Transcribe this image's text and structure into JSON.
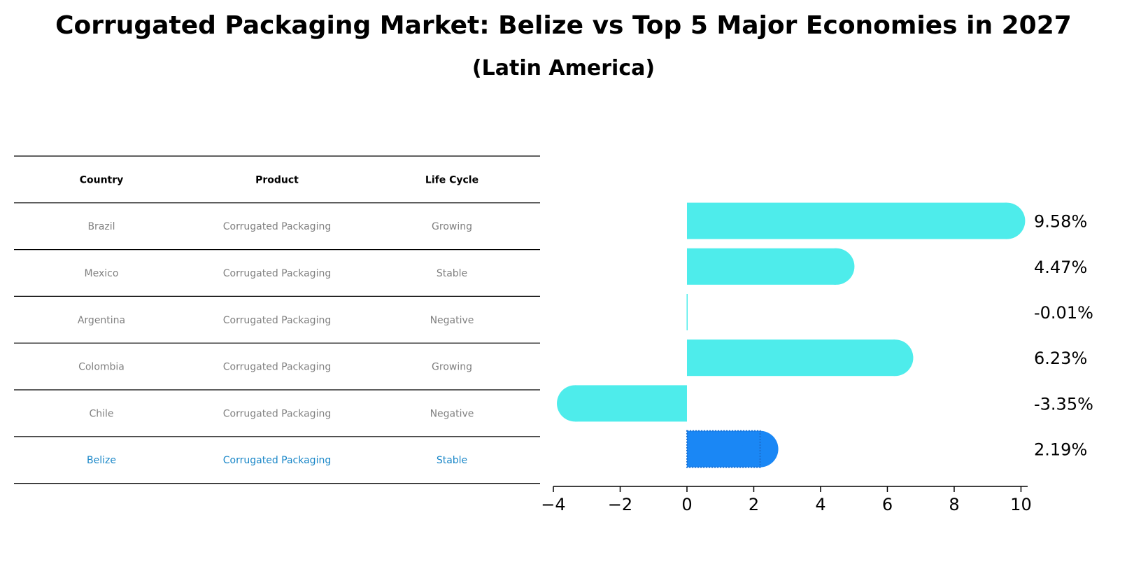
{
  "title": "Corrugated Packaging Market: Belize vs Top 5 Major Economies in 2027",
  "subtitle": "(Latin America)",
  "table": {
    "headers": [
      "Country",
      "Product",
      "Life Cycle"
    ],
    "rows": [
      {
        "country": "Brazil",
        "product": "Corrugated Packaging",
        "life_cycle": "Growing",
        "highlight": false
      },
      {
        "country": "Mexico",
        "product": "Corrugated Packaging",
        "life_cycle": "Stable",
        "highlight": false
      },
      {
        "country": "Argentina",
        "product": "Corrugated Packaging",
        "life_cycle": "Negative",
        "highlight": false
      },
      {
        "country": "Colombia",
        "product": "Corrugated Packaging",
        "life_cycle": "Growing",
        "highlight": false
      },
      {
        "country": "Chile",
        "product": "Corrugated Packaging",
        "life_cycle": "Negative",
        "highlight": false
      },
      {
        "country": "Belize",
        "product": "Corrugated Packaging",
        "life_cycle": "Stable",
        "highlight": true
      }
    ]
  },
  "colors": {
    "bar": "#4eeceb",
    "highlight_bar": "#1a87f5",
    "muted_text": "#808080",
    "highlight_text": "#1a87c8"
  },
  "chart_data": {
    "type": "bar",
    "orientation": "horizontal",
    "categories": [
      "Brazil",
      "Mexico",
      "Argentina",
      "Colombia",
      "Chile",
      "Belize"
    ],
    "values": [
      9.58,
      4.47,
      -0.01,
      6.23,
      -3.35,
      2.19
    ],
    "labels": [
      "9.58%",
      "4.47%",
      "-0.01%",
      "6.23%",
      "-3.35%",
      "2.19%"
    ],
    "highlight": "Belize",
    "xlim": [
      -4,
      10.2
    ],
    "xticks": [
      -4,
      -2,
      0,
      2,
      4,
      6,
      8,
      10
    ],
    "xtick_labels": [
      "−4",
      "−2",
      "0",
      "2",
      "4",
      "6",
      "8",
      "10"
    ],
    "xlabel": "",
    "ylabel": "",
    "grid": false
  }
}
